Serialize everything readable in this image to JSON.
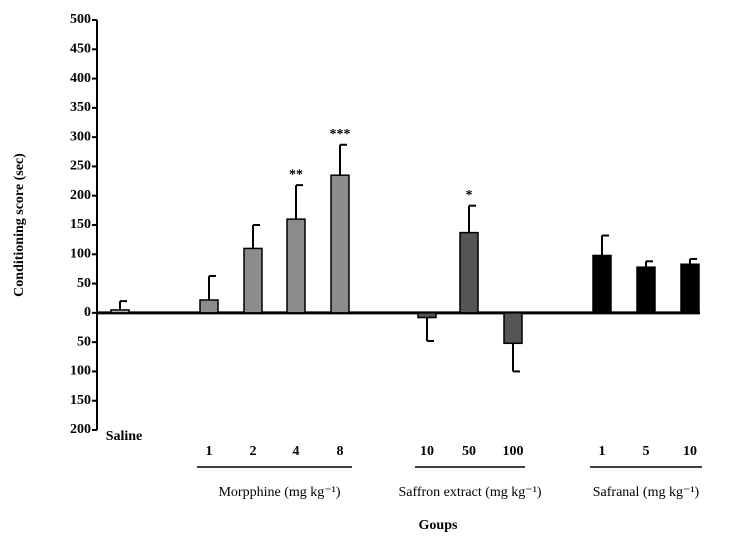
{
  "chart_data": {
    "type": "bar",
    "y_label": "Conditioning score (sec)",
    "x_label": "Goups",
    "categories": [
      "Saline",
      "1",
      "2",
      "4",
      "8",
      "10",
      "50",
      "100",
      "1",
      "5",
      "10"
    ],
    "values": [
      5,
      22,
      110,
      160,
      235,
      -8,
      137,
      -52,
      98,
      78,
      83
    ],
    "errors": [
      15,
      41,
      40,
      58,
      52,
      40,
      46,
      48,
      34,
      10,
      9
    ],
    "colors": [
      "#b0b0b0",
      "#8c8c8c",
      "#8c8c8c",
      "#8c8c8c",
      "#8c8c8c",
      "#555555",
      "#555555",
      "#555555",
      "#000000",
      "#000000",
      "#000000"
    ],
    "significance": [
      null,
      null,
      null,
      "**",
      "***",
      null,
      "*",
      null,
      null,
      null,
      null
    ],
    "groups": [
      "Morpphine (mg kg⁻¹)",
      "Saffron extract (mg kg⁻¹)",
      "Safranal (mg kg⁻¹)"
    ],
    "ylim": [
      -200,
      500
    ],
    "yticks": [
      {
        "value": -200,
        "label": "200"
      },
      {
        "value": -150,
        "label": "150"
      },
      {
        "value": -100,
        "label": "100"
      },
      {
        "value": -50,
        "label": "50"
      },
      0,
      50,
      100,
      150,
      200,
      250,
      300,
      350,
      400,
      450,
      500
    ]
  }
}
